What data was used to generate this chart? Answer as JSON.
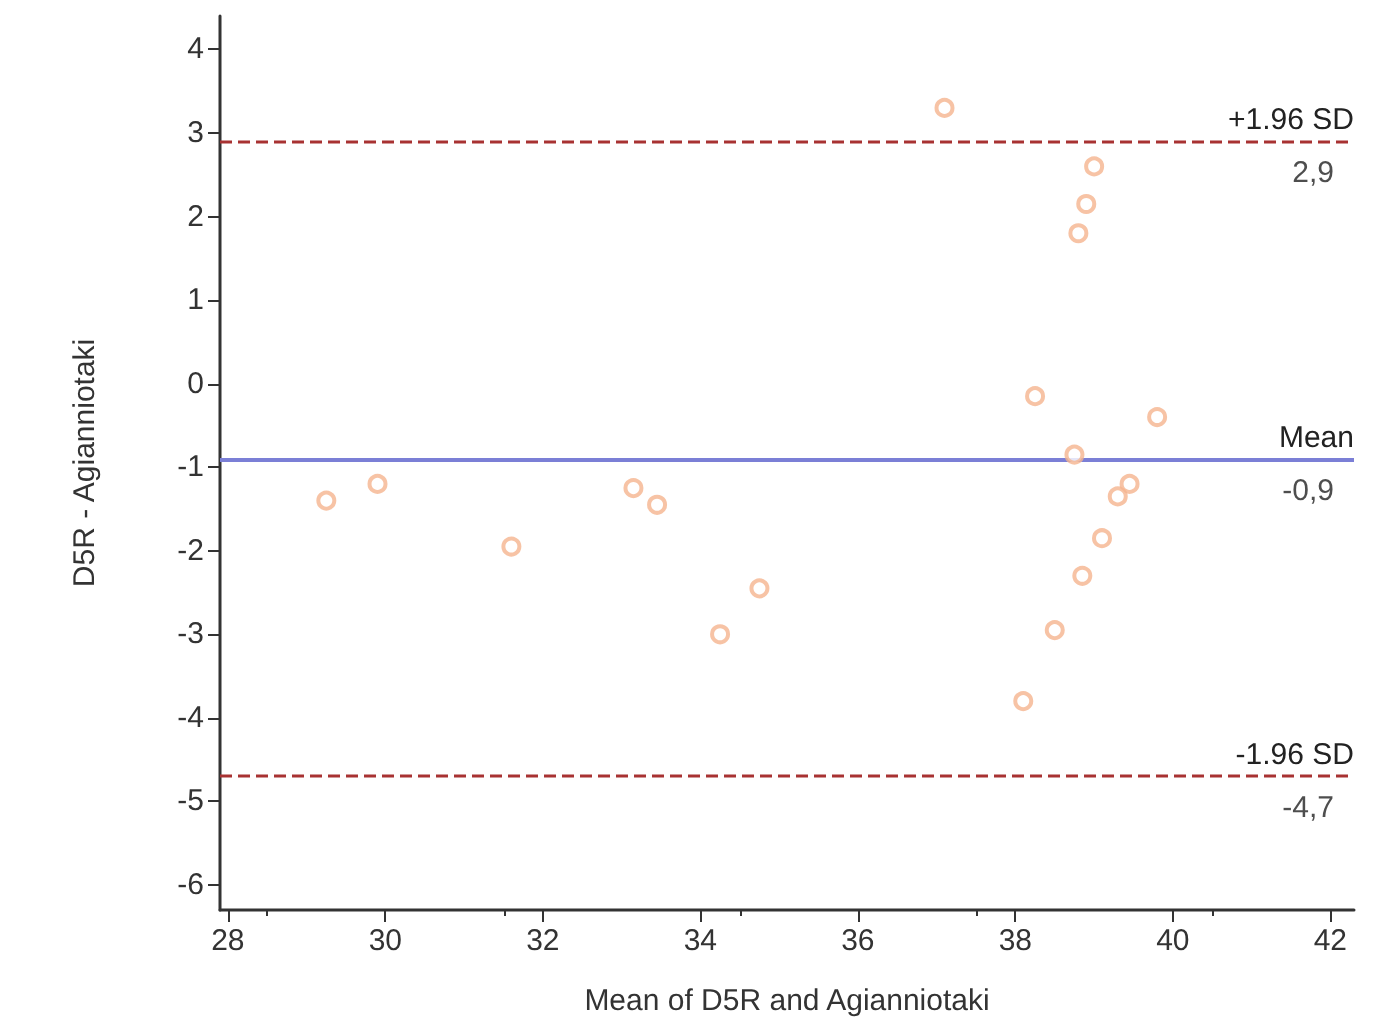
{
  "chart_data": {
    "type": "scatter",
    "xlabel": "Mean of D5R and Agianniotaki",
    "ylabel": "D5R - Agianniotaki",
    "x": [
      37.1,
      39.0,
      38.9,
      38.8,
      38.25,
      39.8,
      38.75,
      39.45,
      39.3,
      39.1,
      38.85,
      38.5,
      38.1,
      29.25,
      29.9,
      31.6,
      33.15,
      33.45,
      34.25,
      34.75
    ],
    "series": [
      {
        "color": "#f5b48e",
        "values": [
          3.3,
          2.6,
          2.15,
          1.8,
          -0.15,
          -0.4,
          -0.85,
          -1.2,
          -1.35,
          -1.85,
          -2.3,
          -2.95,
          -3.8,
          -1.4,
          -1.2,
          -1.95,
          -1.25,
          -1.45,
          -3.0,
          -2.45
        ]
      }
    ],
    "marker": "circle",
    "grid": false,
    "xlim": [
      27.9,
      42.3
    ],
    "xticks": [
      28,
      30,
      32,
      34,
      36,
      38,
      40,
      42
    ],
    "ylim": [
      -6.3,
      4.4
    ],
    "yticks": [
      -6,
      -5,
      -4,
      -3,
      -2,
      -1,
      0,
      1,
      2,
      3,
      4
    ],
    "ref_lines": [
      {
        "axis": "y",
        "value": 2.9,
        "label": "+1.96 SD",
        "color": "#a83232",
        "line_style": "dashed"
      },
      {
        "axis": "y",
        "value": -0.9,
        "label": "Mean",
        "color": "#7b7fd6",
        "line_style": "solid"
      },
      {
        "axis": "y",
        "value": -4.7,
        "label": "-1.96 SD",
        "color": "#a83232",
        "line_style": "dashed"
      }
    ],
    "annotations": [
      {
        "text": "2,9",
        "y": 2.9
      },
      {
        "text": "-0,9",
        "y": -0.9
      },
      {
        "text": "-4,7",
        "y": -4.7
      }
    ]
  }
}
